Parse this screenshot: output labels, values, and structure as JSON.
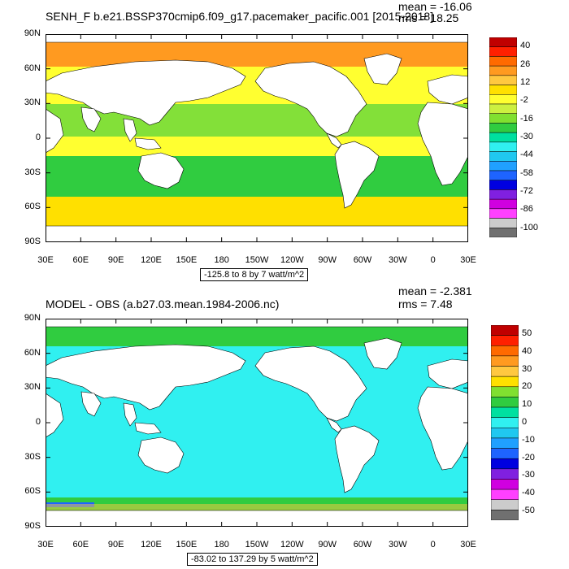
{
  "panels": [
    {
      "title": "SENH_F b.e21.BSSP370cmip6.f09_g17.pacemaker_pacific.001 [2015-2018]",
      "mean_text": "mean = -16.06",
      "rms_text": "rms = 18.25",
      "contour_info": "-125.8 to 8 by 7 watt/m^2",
      "lat_labels": [
        "90N",
        "60N",
        "30N",
        "0",
        "30S",
        "60S",
        "90S"
      ],
      "lon_labels": [
        "30E",
        "60E",
        "90E",
        "120E",
        "150E",
        "180",
        "150W",
        "120W",
        "90W",
        "60W",
        "30W",
        "0",
        "30E"
      ],
      "colorbar_labels": [
        "40",
        "26",
        "12",
        "-2",
        "-16",
        "-30",
        "-44",
        "-58",
        "-72",
        "-86",
        "-100"
      ],
      "colorbar_colors": [
        "#c00000",
        "#ff2000",
        "#ff6a00",
        "#ff9a20",
        "#ffc840",
        "#ffe000",
        "#ffff30",
        "#ccf040",
        "#80e030",
        "#30cc40",
        "#00e0a0",
        "#30f0f0",
        "#20c8f0",
        "#20a0ff",
        "#1e64ff",
        "#0000e0",
        "#8020e0",
        "#d000e0",
        "#ff40ff",
        "#cccccc",
        "#707070"
      ],
      "ocean_color": "#ffff30"
    },
    {
      "title": "MODEL - OBS (a.b27.03.mean.1984-2006.nc)",
      "mean_text": "mean = -2.381",
      "rms_text": "rms = 7.48",
      "contour_info": "-83.02 to 137.29 by 5 watt/m^2",
      "lat_labels": [
        "90N",
        "60N",
        "30N",
        "0",
        "30S",
        "60S",
        "90S"
      ],
      "lon_labels": [
        "30E",
        "60E",
        "90E",
        "120E",
        "150E",
        "180",
        "150W",
        "120W",
        "90W",
        "60W",
        "30W",
        "0",
        "30E"
      ],
      "colorbar_labels": [
        "50",
        "40",
        "30",
        "20",
        "10",
        "0",
        "-10",
        "-20",
        "-30",
        "-40",
        "-50"
      ],
      "colorbar_colors": [
        "#c00000",
        "#ff2000",
        "#ff6a00",
        "#ff9a20",
        "#ffc840",
        "#ffe000",
        "#80e030",
        "#30cc40",
        "#00e0a0",
        "#30f0f0",
        "#20c8f0",
        "#20a0ff",
        "#1e64ff",
        "#0000e0",
        "#8020e0",
        "#d000e0",
        "#ff40ff",
        "#cccccc",
        "#707070"
      ],
      "ocean_color": "#30f0f0"
    }
  ]
}
